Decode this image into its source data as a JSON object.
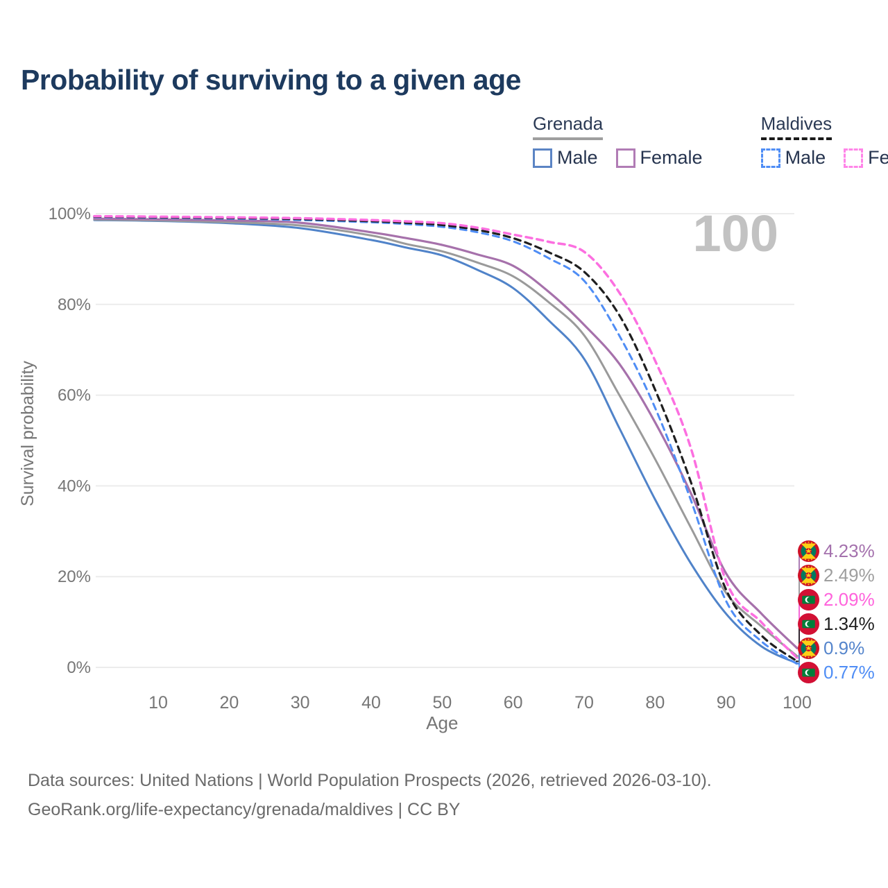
{
  "title": "Probability of surviving to a given age",
  "hover_age_label": "100",
  "legend": {
    "groups": [
      {
        "name": "Grenada",
        "underline_color": "#9e9e9e",
        "underline_style": "solid",
        "items": [
          {
            "label": "Male",
            "color": "#5b84c4",
            "dashed": false
          },
          {
            "label": "Female",
            "color": "#b17cb5",
            "dashed": false
          }
        ]
      },
      {
        "name": "Maldives",
        "underline_color": "#1a1a1a",
        "underline_style": "dashed",
        "items": [
          {
            "label": "Male",
            "color": "#4f8df5",
            "dashed": true
          },
          {
            "label": "Female",
            "color": "#ff85e8",
            "dashed": true
          }
        ]
      }
    ]
  },
  "chart_data": {
    "type": "line",
    "title": "Probability of surviving to a given age",
    "xlabel": "Age",
    "ylabel": "Survival probability",
    "xlim": [
      0,
      100
    ],
    "ylim": [
      0,
      100
    ],
    "grid": "horizontal",
    "xticks": [
      10,
      20,
      30,
      40,
      50,
      60,
      70,
      80,
      90,
      100
    ],
    "ytick_labels": [
      "0%",
      "20%",
      "40%",
      "60%",
      "80%",
      "100%"
    ],
    "x": [
      1,
      10,
      20,
      30,
      40,
      45,
      50,
      55,
      60,
      65,
      70,
      75,
      80,
      85,
      90,
      95,
      100
    ],
    "series": [
      {
        "key": "grenada_male",
        "name": "Grenada — Male",
        "color": "#5083c9",
        "dashed": false,
        "width": 3,
        "values": [
          98.6,
          98.4,
          97.9,
          96.8,
          94.2,
          92.5,
          90.8,
          87.6,
          83.6,
          76.5,
          68.0,
          52.6,
          37.0,
          23.0,
          11.8,
          4.6,
          0.9
        ]
      },
      {
        "key": "grenada_both",
        "name": "Grenada — Both sexes",
        "color": "#9a9a9a",
        "dashed": false,
        "width": 3,
        "values": [
          98.7,
          98.5,
          98.1,
          97.4,
          95.2,
          93.3,
          91.7,
          89.2,
          86.2,
          80.5,
          73.2,
          59.9,
          45.9,
          30.9,
          16.4,
          9.0,
          2.49
        ]
      },
      {
        "key": "grenada_female",
        "name": "Grenada — Female",
        "color": "#a671ab",
        "dashed": false,
        "width": 3.2,
        "values": [
          98.9,
          98.75,
          98.5,
          98.0,
          95.9,
          94.6,
          93.1,
          91.0,
          88.5,
          82.8,
          75.5,
          66.8,
          54.0,
          38.5,
          20.7,
          11.8,
          4.23
        ]
      },
      {
        "key": "maldives_male",
        "name": "Maldives — Male",
        "color": "#4f8df5",
        "dashed": true,
        "width": 3,
        "values": [
          99.25,
          99.1,
          98.9,
          98.6,
          98.1,
          97.7,
          97.1,
          95.9,
          93.9,
          90.2,
          85.2,
          73.0,
          57.2,
          37.0,
          14.6,
          5.7,
          0.77
        ]
      },
      {
        "key": "maldives_both",
        "name": "Maldives — Both sexes",
        "color": "#1f1f1f",
        "dashed": true,
        "width": 3.2,
        "values": [
          99.35,
          99.2,
          99.05,
          98.8,
          98.35,
          98.0,
          97.5,
          96.4,
          94.6,
          91.5,
          87.2,
          77.5,
          61.2,
          41.0,
          17.1,
          7.0,
          1.34
        ]
      },
      {
        "key": "maldives_female",
        "name": "Maldives — Female",
        "color": "#fc6fe0",
        "dashed": true,
        "width": 3.5,
        "values": [
          99.45,
          99.35,
          99.2,
          99.0,
          98.6,
          98.3,
          97.9,
          96.9,
          95.4,
          93.8,
          91.6,
          82.5,
          67.6,
          48.5,
          19.0,
          9.9,
          2.09
        ]
      }
    ]
  },
  "end_labels": [
    {
      "series": "grenada_female",
      "value_label": "4.23%",
      "color": "#a471ad",
      "flag": "grenada"
    },
    {
      "series": "grenada_both",
      "value_label": "2.49%",
      "color": "#9e9e9e",
      "flag": "grenada"
    },
    {
      "series": "maldives_female",
      "value_label": "2.09%",
      "color": "#ff63dc",
      "flag": "maldives"
    },
    {
      "series": "maldives_both",
      "value_label": "1.34%",
      "color": "#1f1f1f",
      "flag": "maldives"
    },
    {
      "series": "grenada_male",
      "value_label": "0.9%",
      "color": "#5585cc",
      "flag": "grenada"
    },
    {
      "series": "maldives_male",
      "value_label": "0.77%",
      "color": "#4f8df5",
      "flag": "maldives"
    }
  ],
  "footer": {
    "line1": "Data sources: United Nations | World Population Prospects (2026, retrieved 2026-03-10).",
    "line2": "GeoRank.org/life-expectancy/grenada/maldives | CC BY"
  }
}
